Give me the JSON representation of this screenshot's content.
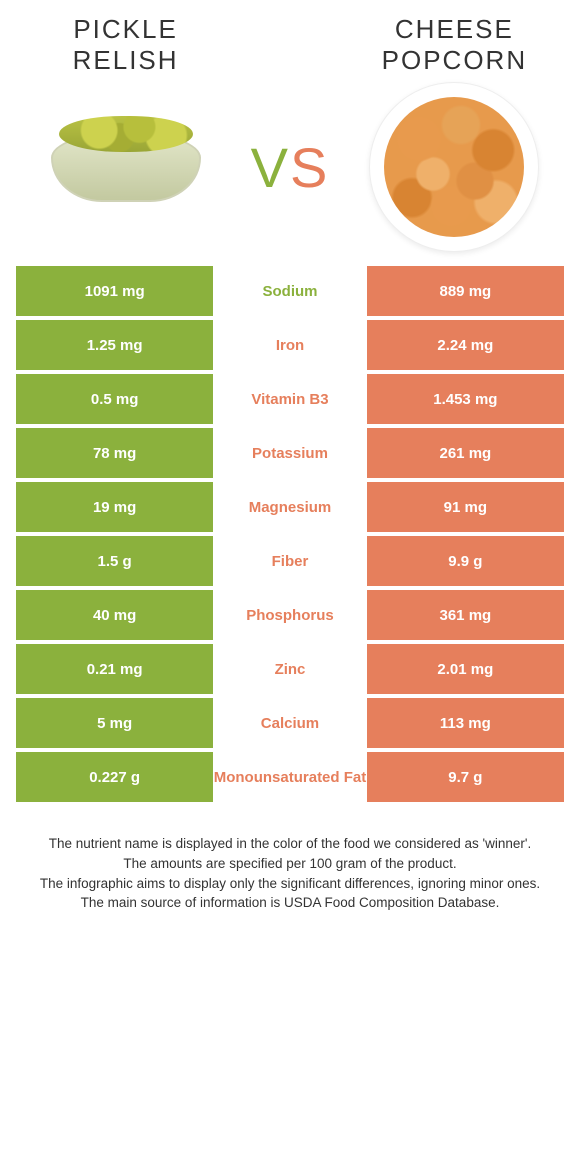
{
  "colors": {
    "left": "#8bb13d",
    "right": "#e67f5c",
    "row_border": "#ffffff",
    "text_dark": "#333333"
  },
  "header": {
    "left_title": "PICKLE RELISH",
    "right_title": "CHEESE POPCORN",
    "vs_text": "VS"
  },
  "rows": [
    {
      "nutrient": "Sodium",
      "left": "1091 mg",
      "right": "889 mg",
      "winner": "left"
    },
    {
      "nutrient": "Iron",
      "left": "1.25 mg",
      "right": "2.24 mg",
      "winner": "right"
    },
    {
      "nutrient": "Vitamin B3",
      "left": "0.5 mg",
      "right": "1.453 mg",
      "winner": "right"
    },
    {
      "nutrient": "Potassium",
      "left": "78 mg",
      "right": "261 mg",
      "winner": "right"
    },
    {
      "nutrient": "Magnesium",
      "left": "19 mg",
      "right": "91 mg",
      "winner": "right"
    },
    {
      "nutrient": "Fiber",
      "left": "1.5 g",
      "right": "9.9 g",
      "winner": "right"
    },
    {
      "nutrient": "Phosphorus",
      "left": "40 mg",
      "right": "361 mg",
      "winner": "right"
    },
    {
      "nutrient": "Zinc",
      "left": "0.21 mg",
      "right": "2.01 mg",
      "winner": "right"
    },
    {
      "nutrient": "Calcium",
      "left": "5 mg",
      "right": "113 mg",
      "winner": "right"
    },
    {
      "nutrient": "Monounsaturated Fat",
      "left": "0.227 g",
      "right": "9.7 g",
      "winner": "right"
    }
  ],
  "footer": {
    "l1": "The nutrient name is displayed in the color of the food we considered as 'winner'.",
    "l2": "The amounts are specified per 100 gram of the product.",
    "l3": "The infographic aims to display only the significant differences, ignoring minor ones.",
    "l4": "The main source of information is USDA Food Composition Database."
  }
}
